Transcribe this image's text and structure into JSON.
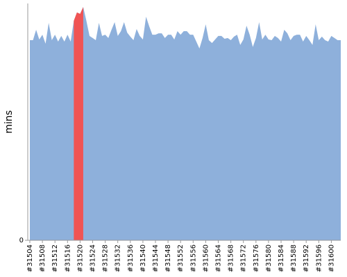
{
  "chart_data": {
    "type": "area",
    "y_label": "mins",
    "categories": [
      "#31504",
      null,
      null,
      null,
      "#31508",
      null,
      null,
      null,
      "#31512",
      null,
      null,
      null,
      "#31516",
      null,
      null,
      null,
      "#31520",
      null,
      null,
      null,
      "#31524",
      null,
      null,
      null,
      "#31528",
      null,
      null,
      null,
      "#31532",
      null,
      null,
      null,
      "#31536",
      null,
      null,
      null,
      "#31540",
      null,
      null,
      null,
      "#31544",
      null,
      null,
      null,
      "#31548",
      null,
      null,
      null,
      "#31552",
      null,
      null,
      null,
      "#31556",
      null,
      null,
      null,
      "#31560",
      null,
      null,
      null,
      "#31564",
      null,
      null,
      null,
      "#31568",
      null,
      null,
      null,
      "#31572",
      null,
      null,
      null,
      "#31576",
      null,
      null,
      null,
      "#31580",
      null,
      null,
      null,
      "#31584",
      null,
      null,
      null,
      "#31588",
      null,
      null,
      null,
      "#31592",
      null,
      null,
      null,
      "#31596",
      null,
      null,
      null,
      "#31600",
      null,
      null,
      null
    ],
    "series": [
      {
        "color": "#8eb0db",
        "values": [
          84.5,
          84.5,
          88.9,
          84.8,
          86.8,
          83.0,
          91.8,
          84.5,
          86.8,
          83.9,
          86.3,
          83.9,
          86.8,
          83.9,
          92.7,
          96.2,
          95.6,
          98.5,
          92.7,
          86.3,
          85.4,
          84.5,
          91.8,
          86.3,
          86.8,
          85.4,
          88.9,
          92.1,
          86.3,
          88.3,
          92.1,
          87.7,
          86.0,
          84.5,
          89.2,
          86.3,
          84.8,
          94.4,
          90.4,
          86.8,
          86.8,
          87.4,
          87.4,
          85.4,
          86.8,
          86.8,
          84.8,
          88.3,
          86.8,
          88.3,
          88.3,
          86.8,
          86.8,
          83.9,
          81.0,
          85.4,
          91.2,
          84.5,
          83.3,
          84.8,
          86.3,
          86.3,
          85.1,
          85.4,
          84.5,
          86.0,
          86.8,
          82.5,
          84.8,
          90.6,
          86.8,
          81.6,
          85.4,
          92.1,
          84.8,
          86.8,
          84.8,
          84.5,
          86.3,
          85.4,
          83.9,
          88.9,
          87.4,
          84.5,
          86.3,
          86.8,
          86.8,
          83.9,
          86.3,
          84.5,
          82.5,
          91.2,
          84.5,
          86.0,
          84.5,
          83.9,
          86.3,
          85.4,
          84.5,
          84.5
        ]
      },
      {
        "color": "#f05454",
        "values": [
          null,
          null,
          null,
          null,
          null,
          null,
          null,
          null,
          null,
          null,
          null,
          null,
          null,
          null,
          92.7,
          96.2,
          95.6,
          98.5,
          null,
          null,
          null,
          null,
          null,
          null,
          null,
          null,
          null,
          null,
          null,
          null,
          null,
          null,
          null,
          null,
          null,
          null,
          null,
          null,
          null,
          null,
          null,
          null,
          null,
          null,
          null,
          null,
          null,
          null,
          null,
          null,
          null,
          null,
          null,
          null,
          null,
          null,
          null,
          null,
          null,
          null,
          null,
          null,
          null,
          null,
          null,
          null,
          null,
          null,
          null,
          null,
          null,
          null,
          null,
          null,
          null,
          null,
          null,
          null,
          null,
          null,
          null,
          null,
          null,
          null,
          null,
          null,
          null,
          null,
          null,
          null,
          null,
          null,
          null,
          null,
          null,
          null,
          null,
          null,
          null,
          null
        ]
      }
    ],
    "ylim": [
      0,
      100
    ],
    "yticks": [
      0
    ]
  }
}
